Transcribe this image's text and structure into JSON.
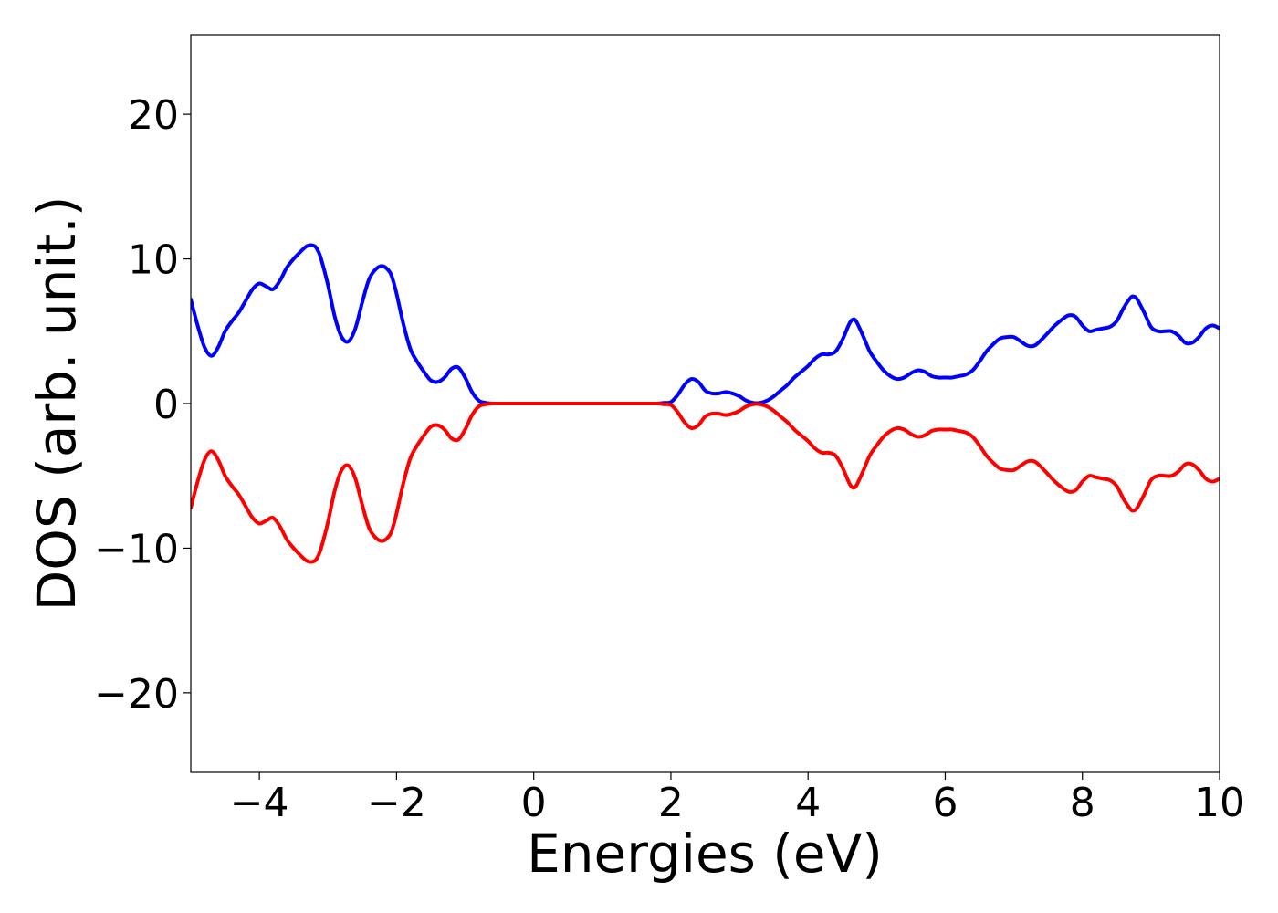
{
  "chart_data": {
    "type": "line",
    "title": "",
    "xlabel": "Energies (eV)",
    "ylabel": "DOS (arb. unit.)",
    "xlim": [
      -5,
      10
    ],
    "ylim": [
      -25.5,
      25.5
    ],
    "xticks": [
      -4,
      -2,
      0,
      2,
      4,
      6,
      8,
      10
    ],
    "xtick_labels": [
      "−4",
      "−2",
      "0",
      "2",
      "4",
      "6",
      "8",
      "10"
    ],
    "yticks": [
      -20,
      -10,
      0,
      10,
      20
    ],
    "ytick_labels": [
      "−20",
      "−10",
      "0",
      "10",
      "20"
    ],
    "grid": false,
    "legend": null,
    "series": [
      {
        "color": "#0000ff",
        "x": [
          -5.0,
          -4.9,
          -4.8,
          -4.7,
          -4.6,
          -4.5,
          -4.4,
          -4.3,
          -4.2,
          -4.1,
          -4.0,
          -3.9,
          -3.8,
          -3.7,
          -3.6,
          -3.5,
          -3.4,
          -3.3,
          -3.2,
          -3.15,
          -3.1,
          -3.0,
          -2.9,
          -2.8,
          -2.7,
          -2.6,
          -2.5,
          -2.4,
          -2.3,
          -2.2,
          -2.1,
          -2.05,
          -2.0,
          -1.9,
          -1.8,
          -1.7,
          -1.6,
          -1.5,
          -1.4,
          -1.3,
          -1.2,
          -1.1,
          -1.0,
          -0.9,
          -0.8,
          -0.7,
          -0.6,
          -0.5,
          0.0,
          1.0,
          1.5,
          1.8,
          1.9,
          2.0,
          2.1,
          2.2,
          2.3,
          2.4,
          2.5,
          2.6,
          2.7,
          2.8,
          2.9,
          3.0,
          3.1,
          3.2,
          3.3,
          3.4,
          3.5,
          3.6,
          3.7,
          3.8,
          3.9,
          4.0,
          4.1,
          4.2,
          4.3,
          4.4,
          4.5,
          4.6,
          4.65,
          4.7,
          4.8,
          4.9,
          5.0,
          5.1,
          5.2,
          5.3,
          5.4,
          5.5,
          5.6,
          5.7,
          5.8,
          5.9,
          6.0,
          6.1,
          6.2,
          6.3,
          6.4,
          6.5,
          6.6,
          6.7,
          6.8,
          6.9,
          7.0,
          7.1,
          7.2,
          7.3,
          7.4,
          7.5,
          7.6,
          7.7,
          7.8,
          7.9,
          8.0,
          8.1,
          8.2,
          8.3,
          8.4,
          8.5,
          8.6,
          8.7,
          8.75,
          8.8,
          8.9,
          9.0,
          9.1,
          9.2,
          9.3,
          9.4,
          9.5,
          9.6,
          9.7,
          9.8,
          9.9,
          10.0
        ],
        "y": [
          7.2,
          5.4,
          3.9,
          3.3,
          3.9,
          5.0,
          5.7,
          6.3,
          7.1,
          7.9,
          8.3,
          8.1,
          7.9,
          8.5,
          9.4,
          10.0,
          10.5,
          10.9,
          10.9,
          10.6,
          10.0,
          8.2,
          6.0,
          4.6,
          4.3,
          5.2,
          7.0,
          8.6,
          9.3,
          9.5,
          9.1,
          8.5,
          7.6,
          5.5,
          3.8,
          2.9,
          2.2,
          1.6,
          1.5,
          1.8,
          2.4,
          2.5,
          1.8,
          0.8,
          0.2,
          0.05,
          0.0,
          0.0,
          0.0,
          0.0,
          0.0,
          0.0,
          0.05,
          0.1,
          0.6,
          1.3,
          1.7,
          1.5,
          0.9,
          0.7,
          0.7,
          0.8,
          0.7,
          0.5,
          0.2,
          0.05,
          0.05,
          0.2,
          0.5,
          0.9,
          1.3,
          1.8,
          2.2,
          2.6,
          3.1,
          3.4,
          3.4,
          3.6,
          4.4,
          5.5,
          5.8,
          5.7,
          4.7,
          3.6,
          2.9,
          2.3,
          1.9,
          1.7,
          1.8,
          2.1,
          2.3,
          2.2,
          1.9,
          1.8,
          1.8,
          1.8,
          1.9,
          2.0,
          2.3,
          2.9,
          3.6,
          4.1,
          4.5,
          4.6,
          4.6,
          4.3,
          4.0,
          4.0,
          4.4,
          4.9,
          5.4,
          5.8,
          6.1,
          6.0,
          5.4,
          5.0,
          5.1,
          5.2,
          5.3,
          5.7,
          6.6,
          7.3,
          7.4,
          7.2,
          6.3,
          5.3,
          5.0,
          5.0,
          5.0,
          4.7,
          4.2,
          4.2,
          4.6,
          5.2,
          5.4,
          5.2
        ]
      },
      {
        "color": "#ff0000",
        "x": [
          -5.0,
          -4.9,
          -4.8,
          -4.7,
          -4.6,
          -4.5,
          -4.4,
          -4.3,
          -4.2,
          -4.1,
          -4.0,
          -3.9,
          -3.8,
          -3.7,
          -3.6,
          -3.5,
          -3.4,
          -3.3,
          -3.2,
          -3.15,
          -3.1,
          -3.0,
          -2.9,
          -2.8,
          -2.7,
          -2.6,
          -2.5,
          -2.4,
          -2.3,
          -2.2,
          -2.1,
          -2.05,
          -2.0,
          -1.9,
          -1.8,
          -1.7,
          -1.6,
          -1.5,
          -1.4,
          -1.3,
          -1.2,
          -1.1,
          -1.0,
          -0.9,
          -0.8,
          -0.7,
          -0.6,
          -0.5,
          0.0,
          1.0,
          1.5,
          1.8,
          1.9,
          2.0,
          2.1,
          2.2,
          2.3,
          2.4,
          2.5,
          2.6,
          2.7,
          2.8,
          2.9,
          3.0,
          3.1,
          3.2,
          3.3,
          3.4,
          3.5,
          3.6,
          3.7,
          3.8,
          3.9,
          4.0,
          4.1,
          4.2,
          4.3,
          4.4,
          4.5,
          4.6,
          4.65,
          4.7,
          4.8,
          4.9,
          5.0,
          5.1,
          5.2,
          5.3,
          5.4,
          5.5,
          5.6,
          5.7,
          5.8,
          5.9,
          6.0,
          6.1,
          6.2,
          6.3,
          6.4,
          6.5,
          6.6,
          6.7,
          6.8,
          6.9,
          7.0,
          7.1,
          7.2,
          7.3,
          7.4,
          7.5,
          7.6,
          7.7,
          7.8,
          7.9,
          8.0,
          8.1,
          8.2,
          8.3,
          8.4,
          8.5,
          8.6,
          8.7,
          8.75,
          8.8,
          8.9,
          9.0,
          9.1,
          9.2,
          9.3,
          9.4,
          9.5,
          9.6,
          9.7,
          9.8,
          9.9,
          10.0
        ],
        "y": [
          -7.2,
          -5.4,
          -3.9,
          -3.3,
          -3.9,
          -5.0,
          -5.7,
          -6.3,
          -7.1,
          -7.9,
          -8.3,
          -8.1,
          -7.9,
          -8.5,
          -9.4,
          -10.0,
          -10.5,
          -10.9,
          -10.9,
          -10.6,
          -10.0,
          -8.2,
          -6.0,
          -4.6,
          -4.3,
          -5.2,
          -7.0,
          -8.6,
          -9.3,
          -9.5,
          -9.1,
          -8.5,
          -7.6,
          -5.5,
          -3.8,
          -2.9,
          -2.2,
          -1.6,
          -1.5,
          -1.8,
          -2.4,
          -2.5,
          -1.8,
          -0.8,
          -0.2,
          -0.05,
          0.0,
          0.0,
          0.0,
          0.0,
          0.0,
          0.0,
          -0.05,
          -0.1,
          -0.6,
          -1.3,
          -1.7,
          -1.5,
          -0.9,
          -0.7,
          -0.7,
          -0.8,
          -0.7,
          -0.5,
          -0.2,
          -0.05,
          -0.05,
          -0.2,
          -0.5,
          -0.9,
          -1.3,
          -1.8,
          -2.2,
          -2.6,
          -3.1,
          -3.4,
          -3.4,
          -3.6,
          -4.4,
          -5.5,
          -5.8,
          -5.7,
          -4.7,
          -3.6,
          -2.9,
          -2.3,
          -1.9,
          -1.7,
          -1.8,
          -2.1,
          -2.3,
          -2.2,
          -1.9,
          -1.8,
          -1.8,
          -1.8,
          -1.9,
          -2.0,
          -2.3,
          -2.9,
          -3.6,
          -4.1,
          -4.5,
          -4.6,
          -4.6,
          -4.3,
          -4.0,
          -4.0,
          -4.4,
          -4.9,
          -5.4,
          -5.8,
          -6.1,
          -6.0,
          -5.4,
          -5.0,
          -5.1,
          -5.2,
          -5.3,
          -5.7,
          -6.6,
          -7.3,
          -7.4,
          -7.2,
          -6.3,
          -5.3,
          -5.0,
          -5.0,
          -5.0,
          -4.7,
          -4.2,
          -4.2,
          -4.6,
          -5.2,
          -5.4,
          -5.2
        ]
      }
    ]
  }
}
